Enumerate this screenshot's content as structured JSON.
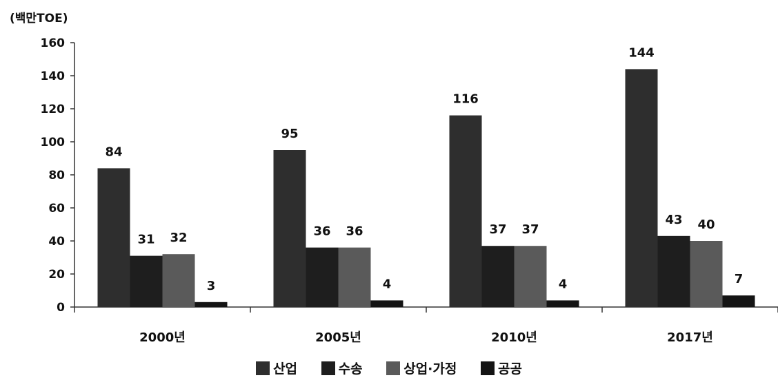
{
  "chart_data": {
    "type": "bar",
    "unit_label": "(백만TOE)",
    "categories": [
      "2000년",
      "2005년",
      "2010년",
      "2017년"
    ],
    "series": [
      {
        "name": "산업",
        "values": [
          84,
          95,
          116,
          144
        ],
        "color": "#2e2e2e"
      },
      {
        "name": "수송",
        "values": [
          31,
          36,
          37,
          43
        ],
        "color": "#1e1e1e"
      },
      {
        "name": "상업·가정",
        "values": [
          32,
          36,
          37,
          40
        ],
        "color": "#5a5a5a"
      },
      {
        "name": "공공",
        "values": [
          3,
          4,
          4,
          7
        ],
        "color": "#141414"
      }
    ],
    "ylim": [
      0,
      160
    ],
    "yticks": [
      0,
      20,
      40,
      60,
      80,
      100,
      120,
      140,
      160
    ],
    "grid": false,
    "legend_position": "bottom"
  }
}
